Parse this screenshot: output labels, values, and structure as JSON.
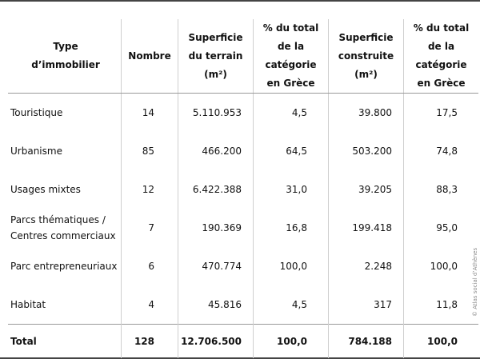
{
  "table": {
    "headers": [
      "Type\nd’immobilier",
      "Nombre",
      "Superficie\ndu terrain\n(m²)",
      "% du total\nde la catégorie\nen Grèce",
      "Superficie\nconstruite\n(m²)",
      "% du total\nde la catégorie\nen Grèce"
    ],
    "rows": [
      [
        "Touristique",
        "14",
        "5.110.953",
        "4,5",
        "39.800",
        "17,5"
      ],
      [
        "Urbanisme",
        "85",
        "466.200",
        "64,5",
        "503.200",
        "74,8"
      ],
      [
        "Usages mixtes",
        "12",
        "6.422.388",
        "31,0",
        "39.205",
        "88,3"
      ],
      [
        "Parcs thématiques /\nCentres commerciaux",
        "7",
        "190.369",
        "16,8",
        "199.418",
        "95,0"
      ],
      [
        "Parc entrepreneuriaux",
        "6",
        "470.774",
        "100,0",
        "2.248",
        "100,0"
      ],
      [
        "Habitat",
        "4",
        "45.816",
        "4,5",
        "317",
        "11,8"
      ]
    ],
    "total": [
      "Total",
      "128",
      "12.706.500",
      "100,0",
      "784.188",
      "100,0"
    ]
  },
  "credit": "© Atlas social d’Athènes"
}
